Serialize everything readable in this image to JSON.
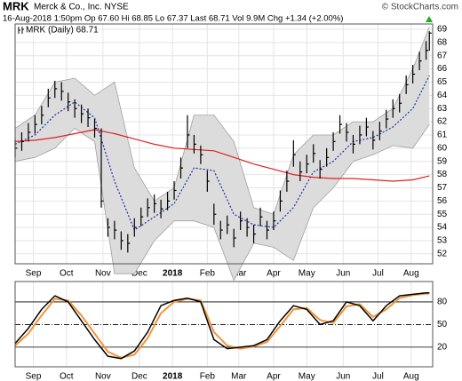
{
  "chart_data": [
    {
      "type": "ohlc",
      "title": "MRK",
      "subtitle": "Merck & Co., Inc. NYSE",
      "source": "© StockCharts.com",
      "info": "16-Aug-2018 1:50pm Op 67.60 Hi 68.85 Lo 67.37 Last 68.71 Vol 9.9M Chg +1.34 (+2.00%)",
      "legend": "MRK (Daily) 68.71",
      "xlim": [
        0,
        252
      ],
      "xticks": [
        {
          "value": 11,
          "label": "Sep"
        },
        {
          "value": 31,
          "label": "Oct"
        },
        {
          "value": 53,
          "label": "Nov"
        },
        {
          "value": 75,
          "label": "Dec"
        },
        {
          "value": 95,
          "label": "2018",
          "bold": true
        },
        {
          "value": 116,
          "label": "Feb"
        },
        {
          "value": 135,
          "label": "Mar"
        },
        {
          "value": 156,
          "label": "Apr"
        },
        {
          "value": 176,
          "label": "May"
        },
        {
          "value": 198,
          "label": "Jun"
        },
        {
          "value": 219,
          "label": "Jul"
        },
        {
          "value": 239,
          "label": "Aug"
        }
      ],
      "ylim": [
        51.25,
        69.4
      ],
      "yticks": [
        52,
        53,
        54,
        55,
        56,
        57,
        58,
        59,
        60,
        61,
        62,
        63,
        64,
        65,
        66,
        67,
        68,
        69
      ],
      "grid": true,
      "bars": {
        "color": "#000000",
        "x": [
          0,
          4,
          8,
          12,
          16,
          20,
          24,
          28,
          32,
          36,
          40,
          44,
          48,
          52,
          56,
          60,
          64,
          68,
          72,
          76,
          80,
          84,
          88,
          92,
          96,
          100,
          104,
          108,
          112,
          116,
          120,
          124,
          128,
          132,
          136,
          140,
          144,
          148,
          152,
          156,
          160,
          164,
          168,
          172,
          176,
          180,
          184,
          188,
          192,
          196,
          200,
          204,
          208,
          212,
          216,
          220,
          224,
          228,
          232,
          236,
          240,
          244,
          248,
          250
        ],
        "high": [
          60.7,
          61.2,
          61.9,
          62.5,
          63.2,
          64.5,
          65.1,
          65.0,
          64.2,
          63.7,
          63.3,
          63.0,
          62.2,
          61.5,
          54.7,
          54.5,
          53.7,
          53.5,
          54.7,
          55.5,
          56.2,
          56.5,
          56.1,
          56.7,
          57.5,
          59.3,
          62.5,
          61.0,
          60.2,
          58.3,
          55.8,
          54.5,
          54.9,
          53.9,
          55.2,
          54.7,
          54.2,
          55.5,
          54.5,
          55.2,
          56.8,
          58.3,
          60.6,
          59.0,
          59.5,
          60.3,
          59.1,
          60.0,
          61.2,
          62.5,
          61.9,
          61.0,
          61.7,
          62.3,
          61.3,
          62.0,
          62.9,
          63.7,
          64.1,
          65.5,
          66.3,
          67.3,
          68.1,
          68.85
        ],
        "low": [
          59.3,
          59.8,
          60.5,
          61.1,
          61.8,
          63.1,
          63.8,
          63.6,
          62.8,
          62.3,
          61.9,
          61.6,
          60.8,
          55.5,
          53.3,
          53.1,
          52.3,
          52.1,
          53.3,
          54.1,
          54.8,
          55.1,
          54.7,
          55.3,
          56.1,
          57.7,
          60.0,
          59.6,
          58.8,
          56.7,
          54.2,
          53.1,
          53.5,
          52.5,
          53.8,
          53.3,
          52.8,
          54.1,
          53.1,
          53.8,
          55.2,
          56.7,
          58.6,
          57.5,
          58.1,
          58.9,
          57.7,
          58.6,
          59.8,
          61.1,
          60.5,
          59.6,
          60.3,
          60.9,
          59.9,
          60.6,
          61.5,
          62.3,
          62.7,
          64.1,
          64.9,
          65.9,
          66.7,
          67.37
        ],
        "close": [
          60.0,
          60.5,
          61.2,
          61.8,
          62.5,
          63.8,
          64.5,
          64.3,
          63.5,
          63.0,
          62.6,
          62.3,
          61.5,
          56.0,
          54.0,
          53.8,
          53.0,
          52.8,
          54.0,
          54.8,
          55.5,
          55.8,
          55.4,
          56.0,
          56.8,
          58.5,
          61.0,
          60.3,
          59.5,
          57.5,
          55.0,
          53.8,
          54.2,
          53.2,
          54.5,
          54.0,
          53.5,
          54.8,
          53.8,
          54.5,
          56.0,
          57.5,
          59.5,
          58.2,
          58.8,
          59.6,
          58.4,
          59.3,
          60.5,
          61.8,
          61.2,
          60.3,
          61.0,
          61.6,
          60.6,
          61.3,
          62.2,
          63.0,
          63.4,
          64.8,
          65.6,
          66.6,
          67.4,
          68.71
        ]
      },
      "band": {
        "color": "#dcdcdc",
        "edge": "#a0a0a0",
        "x": [
          0,
          12,
          24,
          36,
          48,
          60,
          72,
          84,
          96,
          108,
          120,
          132,
          144,
          156,
          168,
          180,
          192,
          204,
          216,
          228,
          240,
          250
        ],
        "upper": [
          61.5,
          62.5,
          65.0,
          65.3,
          64.0,
          65.0,
          58.5,
          56.0,
          57.0,
          62.5,
          62.5,
          60.5,
          55.5,
          55.0,
          59.5,
          61.0,
          61.0,
          62.0,
          62.0,
          63.0,
          66.0,
          69.2
        ],
        "lower": [
          59.0,
          59.3,
          60.0,
          61.5,
          60.5,
          50.5,
          50.5,
          53.0,
          54.5,
          54.5,
          54.0,
          50.0,
          52.8,
          52.5,
          51.5,
          55.5,
          57.0,
          59.0,
          59.5,
          60.2,
          60.0,
          61.8
        ]
      },
      "series": [
        {
          "color": "#1f2fa8",
          "dash": "2,2",
          "x": [
            0,
            12,
            24,
            36,
            48,
            60,
            72,
            84,
            96,
            108,
            120,
            132,
            144,
            156,
            168,
            180,
            192,
            204,
            216,
            228,
            240,
            250
          ],
          "values": [
            60.3,
            61.0,
            62.5,
            63.5,
            62.3,
            57.5,
            53.8,
            54.8,
            55.8,
            58.5,
            58.3,
            55.0,
            54.2,
            54.0,
            55.5,
            58.2,
            59.0,
            60.5,
            60.8,
            61.6,
            63.0,
            65.5
          ]
        },
        {
          "color": "#e02020",
          "x": [
            0,
            12,
            24,
            36,
            48,
            60,
            72,
            84,
            96,
            108,
            120,
            132,
            144,
            156,
            168,
            180,
            192,
            204,
            216,
            228,
            240,
            250
          ],
          "values": [
            60.5,
            60.6,
            60.8,
            61.1,
            61.4,
            61.1,
            60.7,
            60.3,
            60.0,
            59.9,
            59.8,
            59.3,
            58.8,
            58.4,
            58.0,
            57.8,
            57.7,
            57.7,
            57.6,
            57.5,
            57.6,
            57.9
          ]
        }
      ]
    },
    {
      "type": "line",
      "xlim": [
        0,
        252
      ],
      "xticks": [
        {
          "value": 11,
          "label": "Sep"
        },
        {
          "value": 31,
          "label": "Oct"
        },
        {
          "value": 53,
          "label": "Nov"
        },
        {
          "value": 75,
          "label": "Dec"
        },
        {
          "value": 95,
          "label": "2018",
          "bold": true
        },
        {
          "value": 116,
          "label": "Feb"
        },
        {
          "value": 135,
          "label": "Mar"
        },
        {
          "value": 156,
          "label": "Apr"
        },
        {
          "value": 176,
          "label": "May"
        },
        {
          "value": 198,
          "label": "Jun"
        },
        {
          "value": 219,
          "label": "Jul"
        },
        {
          "value": 239,
          "label": "Aug"
        }
      ],
      "ylim": [
        -6,
        107
      ],
      "yticks": [
        20,
        50,
        80
      ],
      "series": [
        {
          "color": "#f0953a",
          "width": 2,
          "x": [
            0,
            8,
            16,
            24,
            32,
            40,
            48,
            56,
            64,
            72,
            80,
            88,
            96,
            104,
            112,
            120,
            128,
            136,
            144,
            152,
            160,
            168,
            176,
            184,
            192,
            200,
            208,
            216,
            224,
            232,
            240,
            248,
            250
          ],
          "values": [
            22,
            38,
            62,
            84,
            82,
            62,
            38,
            14,
            6,
            10,
            32,
            65,
            80,
            84,
            82,
            40,
            22,
            18,
            21,
            27,
            48,
            70,
            72,
            56,
            52,
            74,
            77,
            60,
            70,
            85,
            89,
            91,
            91
          ]
        },
        {
          "color": "#000000",
          "width": 1.5,
          "x": [
            0,
            8,
            16,
            24,
            32,
            40,
            48,
            56,
            64,
            72,
            80,
            88,
            96,
            104,
            112,
            120,
            128,
            136,
            144,
            152,
            160,
            168,
            176,
            184,
            192,
            200,
            208,
            216,
            224,
            232,
            240,
            248,
            250
          ],
          "values": [
            25,
            45,
            70,
            88,
            80,
            55,
            30,
            8,
            5,
            15,
            40,
            75,
            82,
            85,
            80,
            30,
            18,
            20,
            22,
            30,
            55,
            75,
            70,
            50,
            55,
            80,
            75,
            55,
            75,
            88,
            90,
            92,
            92
          ]
        }
      ]
    }
  ]
}
